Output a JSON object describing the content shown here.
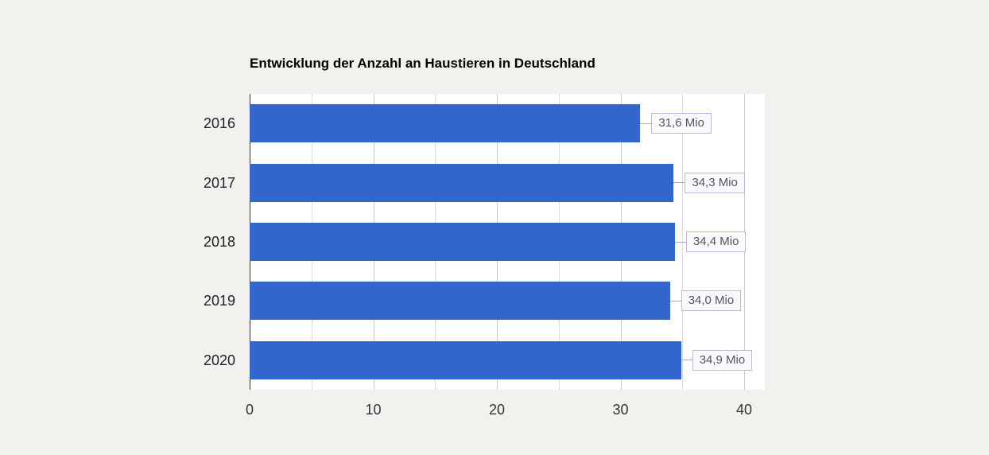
{
  "chart_data": {
    "type": "bar",
    "orientation": "horizontal",
    "title": "Entwicklung der Anzahl an Haustieren in Deutschland",
    "categories": [
      "2016",
      "2017",
      "2018",
      "2019",
      "2020"
    ],
    "values": [
      31.6,
      34.3,
      34.4,
      34.0,
      34.9
    ],
    "value_labels": [
      "31,6 Mio",
      "34,3 Mio",
      "34,4 Mio",
      "34,0 Mio",
      "34,9 Mio"
    ],
    "xlabel": "",
    "ylabel": "",
    "xlim": [
      0,
      40
    ],
    "x_ticks": [
      "0",
      "10",
      "20",
      "30",
      "40"
    ],
    "x_tick_values": [
      0,
      10,
      20,
      30,
      40
    ],
    "x_gridline_step": 5,
    "grid": true,
    "legend": "none",
    "colors": {
      "bar": "#3366cc",
      "page_background": "#f2f1ed",
      "plot_background": "#ffffff",
      "gridline_major": "#cccccc",
      "gridline_minor": "#dcdcdc",
      "zero_line": "#333333",
      "axis_text": "#333333",
      "title_text": "#000000",
      "annotation_text": "#555555",
      "annotation_border": "#c1b4dd",
      "annotation_background": "#faf9fd"
    }
  }
}
